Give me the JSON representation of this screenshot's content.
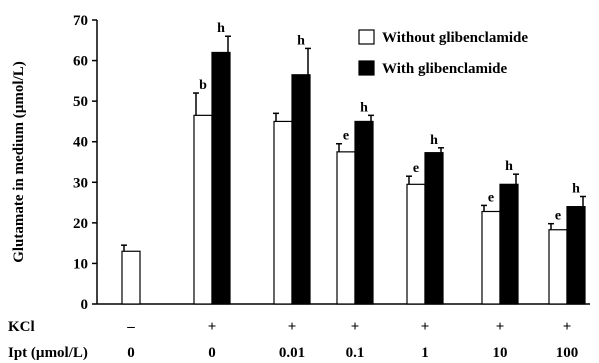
{
  "chart_data": {
    "type": "bar",
    "title": "",
    "xlabel": "",
    "ylabel": "Glutamate in medium (µmol/L)",
    "ylim": [
      0,
      70
    ],
    "yticks": [
      "0",
      "10",
      "20",
      "30",
      "40",
      "50",
      "60",
      "70"
    ],
    "grid": false,
    "legend_position": "top-right",
    "row_headers": [
      "KCl",
      "Ipt (µmol/L)"
    ],
    "kcl_row": [
      "–",
      "+",
      "+",
      "+",
      "+",
      "+",
      "+"
    ],
    "ipt_row": [
      "0",
      "0",
      "0.01",
      "0.1",
      "1",
      "10",
      "100"
    ],
    "categories": [
      "0",
      "0",
      "0.01",
      "0.1",
      "1",
      "10",
      "100"
    ],
    "series": [
      {
        "name": "Without glibenclamide",
        "color": "#ffffff",
        "values": [
          13.0,
          46.5,
          45.0,
          37.5,
          29.5,
          22.8,
          18.3
        ],
        "errors": [
          1.5,
          5.5,
          2.0,
          2.0,
          2.0,
          1.5,
          1.5
        ],
        "labels": [
          "",
          "b",
          "",
          "e",
          "e",
          "e",
          "e"
        ]
      },
      {
        "name": "With glibenclamide",
        "color": "#000000",
        "values": [
          null,
          62.0,
          56.5,
          45.0,
          37.3,
          29.5,
          24.0
        ],
        "errors": [
          null,
          4.0,
          6.5,
          1.5,
          1.2,
          2.5,
          2.5
        ],
        "labels": [
          "",
          "h",
          "h",
          "h",
          "h",
          "h",
          "h"
        ]
      }
    ]
  }
}
